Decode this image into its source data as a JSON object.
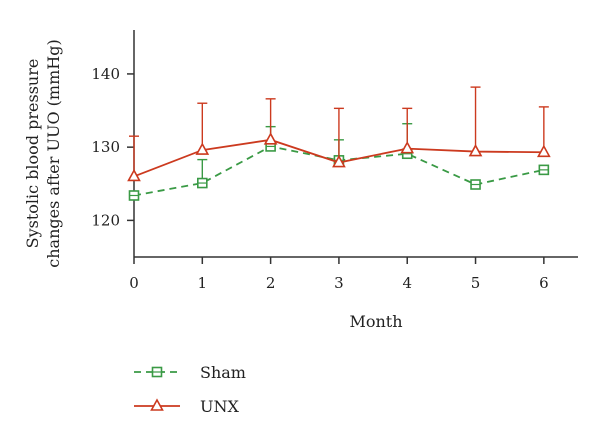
{
  "chart_data": {
    "type": "line",
    "xlabel": "Month",
    "ylabel_lines": [
      "Systolic blood pressure",
      "changes after UUO (mmHg)"
    ],
    "x": [
      0,
      1,
      2,
      3,
      4,
      5,
      6
    ],
    "x_tick_labels": [
      "0",
      "1",
      "2",
      "3",
      "4",
      "5",
      "6"
    ],
    "y_ticks": [
      120,
      130,
      140
    ],
    "y_tick_labels": [
      "120",
      "130",
      "140"
    ],
    "xlim": [
      0,
      6.5
    ],
    "ylim": [
      115,
      146
    ],
    "grid": false,
    "legend_position": "bottom-left",
    "series": [
      {
        "name": "Sham",
        "color": "#3a9a45",
        "line_style": "dashed",
        "marker": "square",
        "values": [
          123.4,
          125.1,
          130.1,
          128.2,
          129.1,
          124.9,
          126.9
        ],
        "error_upper": [
          null,
          128.3,
          132.8,
          131.0,
          133.2,
          null,
          null
        ]
      },
      {
        "name": "UNX",
        "color": "#cc3a1f",
        "line_style": "solid",
        "marker": "triangle",
        "values": [
          126.0,
          129.6,
          131.0,
          127.9,
          129.8,
          129.4,
          129.3
        ],
        "error_upper": [
          131.5,
          136.0,
          136.6,
          135.3,
          135.3,
          138.2,
          135.5
        ]
      }
    ]
  }
}
